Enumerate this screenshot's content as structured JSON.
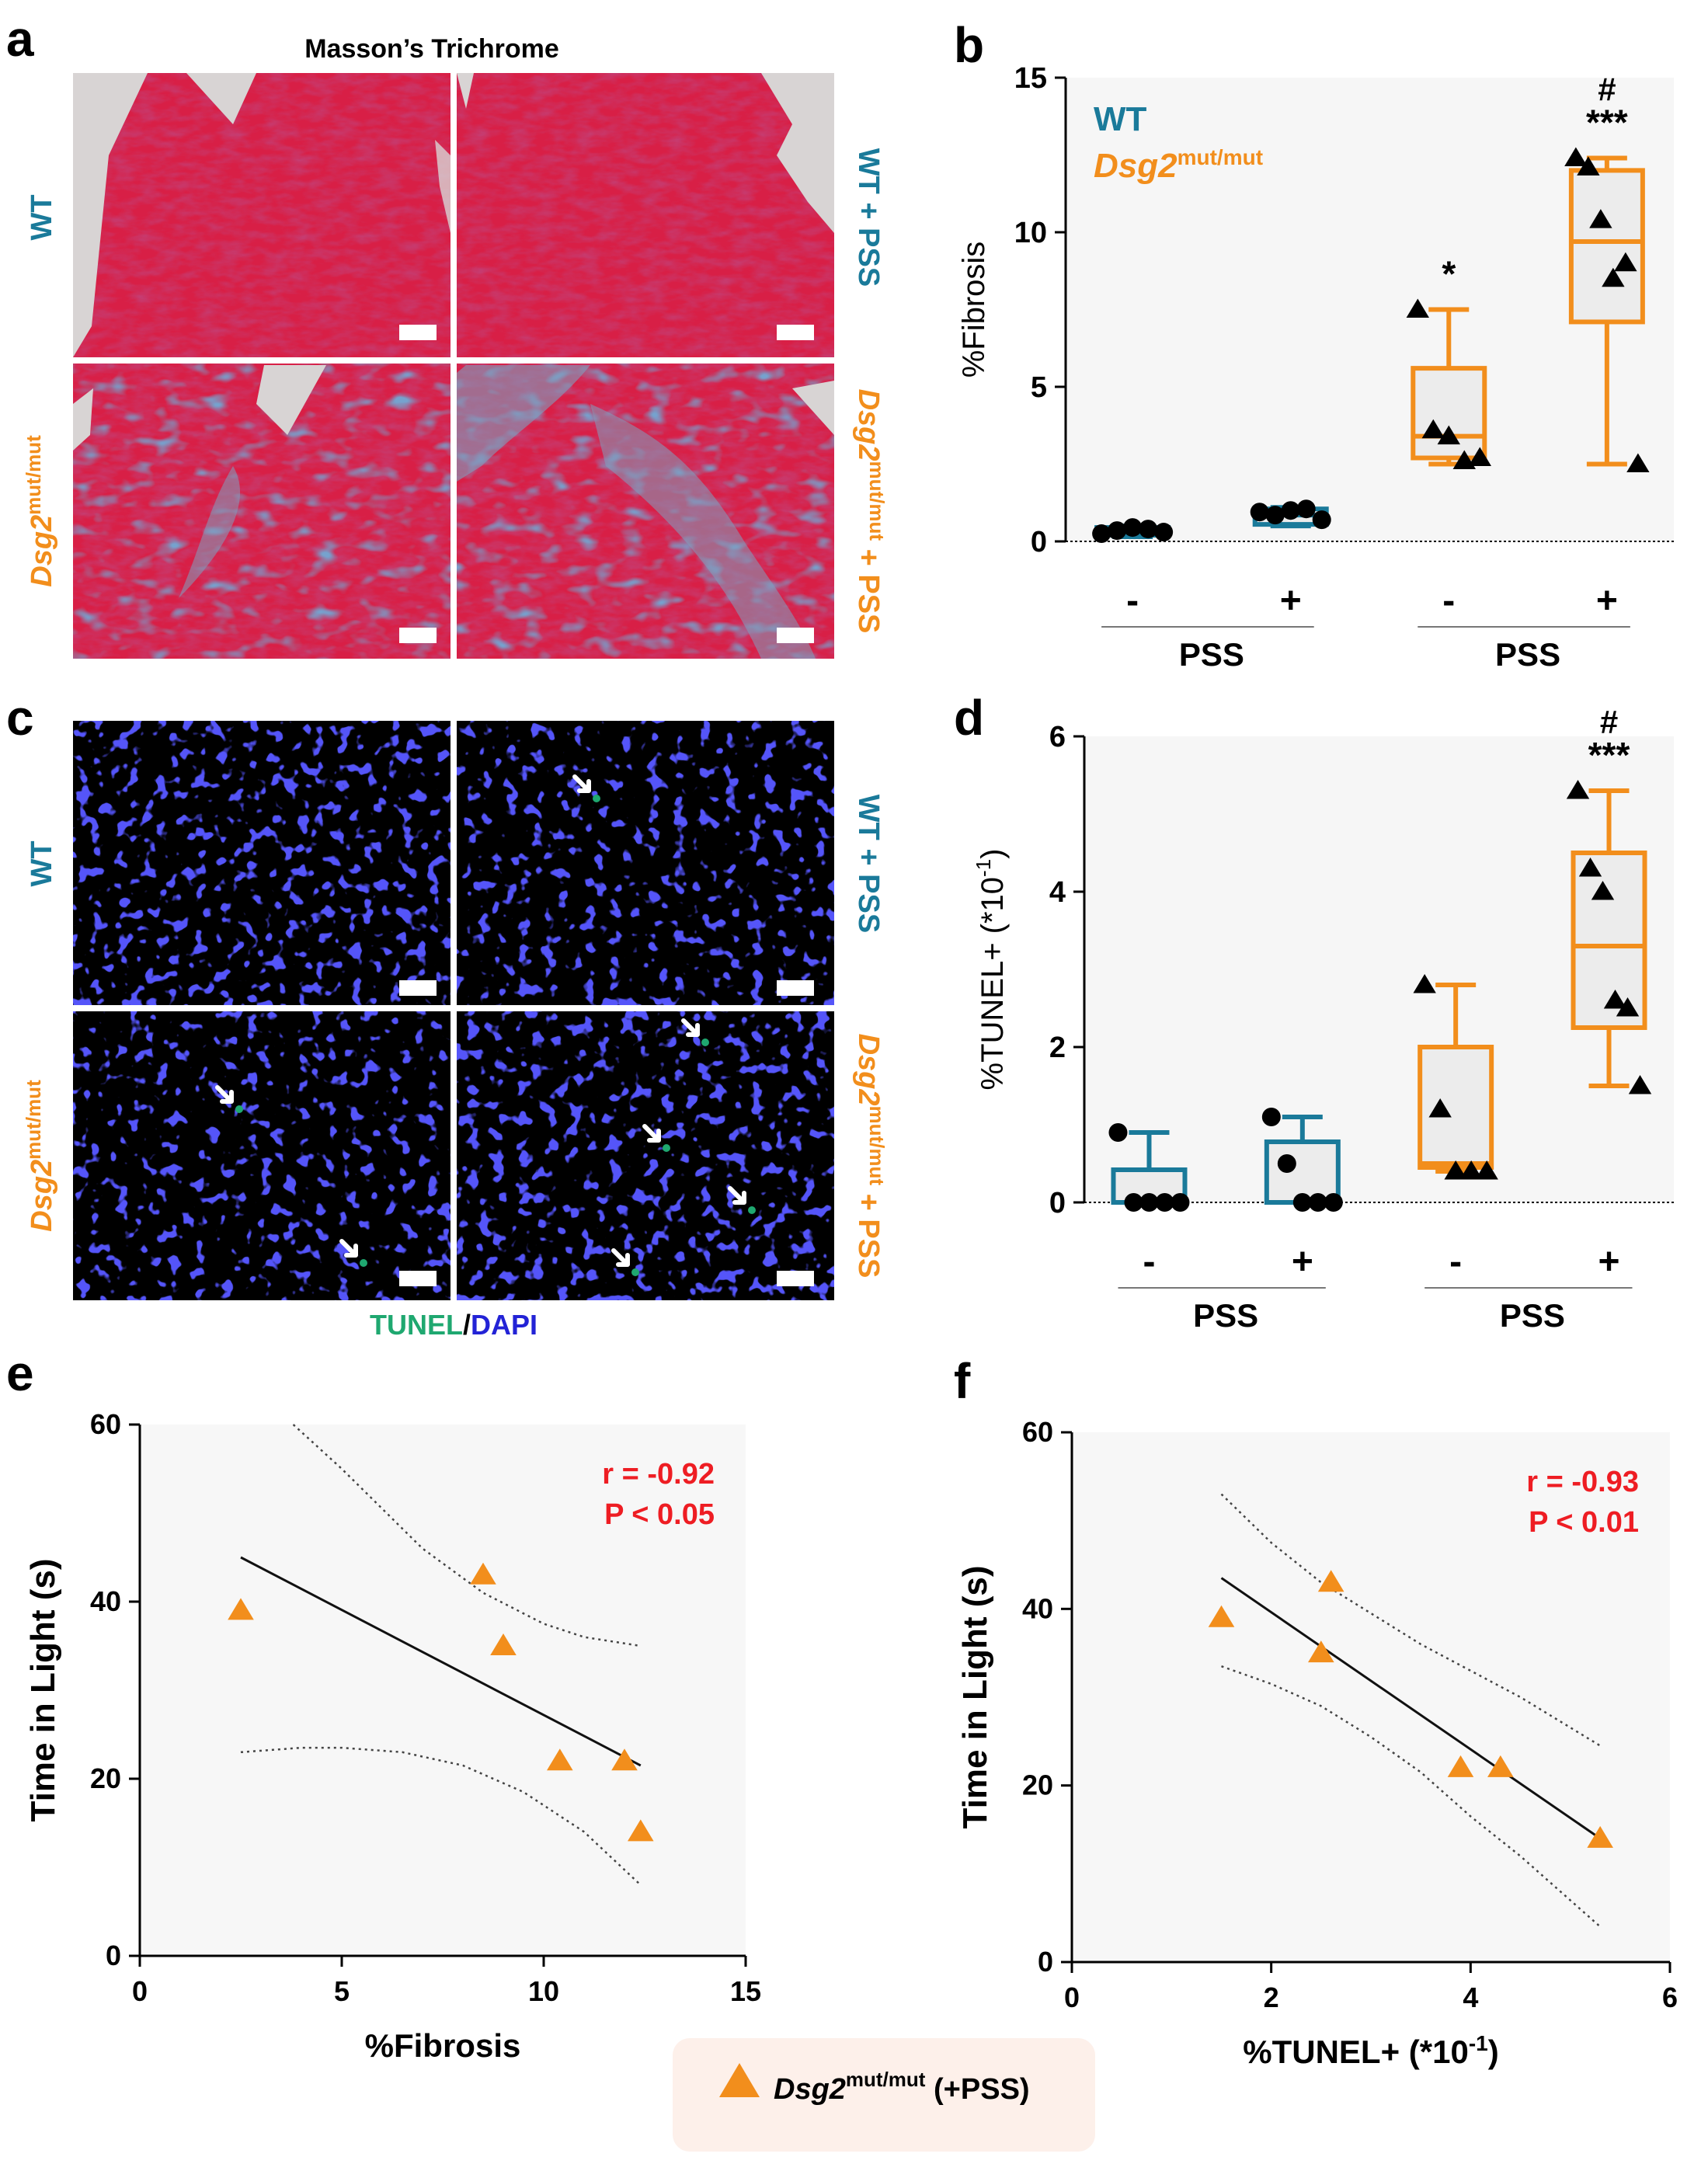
{
  "panel_letters": [
    "a",
    "b",
    "c",
    "d",
    "e",
    "f"
  ],
  "colors": {
    "wt": "#1a7a9a",
    "mut": "#f28e1c",
    "red": "#ee1d23",
    "tunel": "#1fa870",
    "dapi": "#2323d6"
  },
  "panel_a": {
    "title": "Masson’s Trichrome",
    "wt_label": "WT",
    "wt_pss_label": "WT + PSS",
    "mut_label_main": "Dsg2",
    "mut_label_sup": "mut/mut",
    "mut_pss_suffix": "+ PSS"
  },
  "panel_c": {
    "wt_label": "WT",
    "wt_pss_label": "WT + PSS",
    "mut_label_main": "Dsg2",
    "mut_label_sup": "mut/mut",
    "mut_pss_suffix": "+ PSS",
    "caption_tunel": "TUNEL",
    "caption_sep": "/",
    "caption_dapi": "DAPI"
  },
  "legend_box": {
    "main": "Dsg2",
    "sup": "mut/mut",
    "suffix": " (+PSS)"
  },
  "chart_data": [
    {
      "panel": "b",
      "type": "box",
      "ylabel": "%Fibrosis",
      "ylim": [
        0,
        15
      ],
      "yticks": [
        "0",
        "5",
        "10",
        "15"
      ],
      "legend": [
        {
          "label": "WT",
          "sup": "",
          "color": "#1a7a9a"
        },
        {
          "label": "Dsg2",
          "sup": "mut/mut",
          "color": "#f28e1c"
        }
      ],
      "categories": [
        "-",
        "+",
        "-",
        "+"
      ],
      "group_labels": [
        "PSS",
        "PSS"
      ],
      "groups": [
        {
          "genotype": "WT",
          "pss": "-",
          "min": 0.15,
          "q1": 0.2,
          "median": 0.35,
          "q3": 0.45,
          "max": 0.5,
          "points": [
            0.25,
            0.35,
            0.45,
            0.4,
            0.3
          ],
          "marker": "circle",
          "annotation": ""
        },
        {
          "genotype": "WT",
          "pss": "+",
          "min": 0.5,
          "q1": 0.55,
          "median": 0.85,
          "q3": 1.05,
          "max": 1.1,
          "points": [
            0.95,
            0.85,
            1.0,
            1.05,
            0.7
          ],
          "marker": "circle",
          "annotation": ""
        },
        {
          "genotype": "Dsg2",
          "pss": "-",
          "min": 2.5,
          "q1": 2.7,
          "median": 3.4,
          "q3": 5.6,
          "max": 7.5,
          "points": [
            7.5,
            3.6,
            3.4,
            2.6,
            2.7
          ],
          "marker": "triangle",
          "annotation": "*"
        },
        {
          "genotype": "Dsg2",
          "pss": "+",
          "min": 2.5,
          "q1": 7.1,
          "median": 9.7,
          "q3": 12.0,
          "max": 12.4,
          "points": [
            12.4,
            12.1,
            10.4,
            8.5,
            9.0,
            2.5
          ],
          "marker": "triangle",
          "annotation": "***",
          "annotation2": "#"
        }
      ]
    },
    {
      "panel": "d",
      "type": "box",
      "ylabel": "%TUNEL+ (*10",
      "ylabel_sup": "-1",
      "ylabel_end": ")",
      "ylim": [
        0,
        6
      ],
      "yticks": [
        "0",
        "2",
        "4",
        "6"
      ],
      "categories": [
        "-",
        "+",
        "-",
        "+"
      ],
      "group_labels": [
        "PSS",
        "PSS"
      ],
      "groups": [
        {
          "genotype": "WT",
          "pss": "-",
          "min": 0,
          "q1": 0,
          "median": 0,
          "q3": 0.42,
          "max": 0.9,
          "points": [
            0.9,
            0,
            0,
            0,
            0
          ],
          "marker": "circle",
          "annotation": ""
        },
        {
          "genotype": "WT",
          "pss": "+",
          "min": 0,
          "q1": 0,
          "median": 0,
          "q3": 0.78,
          "max": 1.1,
          "points": [
            1.1,
            0.5,
            0,
            0,
            0
          ],
          "marker": "circle",
          "annotation": ""
        },
        {
          "genotype": "Dsg2",
          "pss": "-",
          "min": 0.4,
          "q1": 0.45,
          "median": 0.5,
          "q3": 2.0,
          "max": 2.8,
          "points": [
            2.8,
            1.2,
            0.4,
            0.4,
            0.4
          ],
          "marker": "triangle",
          "annotation": ""
        },
        {
          "genotype": "Dsg2",
          "pss": "+",
          "min": 1.5,
          "q1": 2.25,
          "median": 3.3,
          "q3": 4.5,
          "max": 5.3,
          "points": [
            5.3,
            4.3,
            4.0,
            2.6,
            2.5,
            1.5
          ],
          "marker": "triangle",
          "annotation": "***",
          "annotation2": "#"
        }
      ]
    },
    {
      "panel": "e",
      "type": "scatter",
      "xlabel": "%Fibrosis",
      "ylabel": "Time in Light  (s)",
      "xlim": [
        0,
        15
      ],
      "ylim": [
        0,
        60
      ],
      "xticks": [
        "0",
        "5",
        "10",
        "15"
      ],
      "yticks": [
        "0",
        "20",
        "40",
        "60"
      ],
      "stat_r": "r = -0.92",
      "stat_p": "P < 0.05",
      "points": [
        {
          "x": 2.5,
          "y": 39
        },
        {
          "x": 8.5,
          "y": 43
        },
        {
          "x": 9.0,
          "y": 35
        },
        {
          "x": 10.4,
          "y": 22
        },
        {
          "x": 12.0,
          "y": 22
        },
        {
          "x": 12.4,
          "y": 14
        }
      ],
      "fit": {
        "x": [
          2.5,
          12.4
        ],
        "y": [
          45,
          21.5
        ]
      },
      "ci_upper": {
        "x": [
          3.8,
          5,
          7,
          8.5,
          10,
          11,
          12.4
        ],
        "y": [
          60,
          55,
          46,
          41,
          37.5,
          36,
          35
        ]
      },
      "ci_lower": {
        "x": [
          2.5,
          4,
          5,
          6.5,
          8,
          9.5,
          11,
          12.4
        ],
        "y": [
          23,
          23.5,
          23.5,
          23,
          21.5,
          18.5,
          14,
          8
        ]
      }
    },
    {
      "panel": "f",
      "type": "scatter",
      "xlabel": "%TUNEL+ (*10",
      "xlabel_sup": "-1",
      "xlabel_end": ")",
      "ylabel": "Time in Light  (s)",
      "xlim": [
        0,
        6
      ],
      "ylim": [
        0,
        60
      ],
      "xticks": [
        "0",
        "2",
        "4",
        "6"
      ],
      "yticks": [
        "0",
        "20",
        "40",
        "60"
      ],
      "stat_r": "r = -0.93",
      "stat_p": "P < 0.01",
      "points": [
        {
          "x": 1.5,
          "y": 39
        },
        {
          "x": 2.5,
          "y": 35
        },
        {
          "x": 2.6,
          "y": 43
        },
        {
          "x": 3.9,
          "y": 22
        },
        {
          "x": 4.3,
          "y": 22
        },
        {
          "x": 5.3,
          "y": 14
        }
      ],
      "fit": {
        "x": [
          1.5,
          5.3
        ],
        "y": [
          43.5,
          14
        ]
      },
      "ci_upper": {
        "x": [
          1.5,
          2,
          2.5,
          3,
          3.5,
          4,
          4.5,
          5.3
        ],
        "y": [
          53,
          47.5,
          43,
          39.5,
          36,
          33,
          30,
          24.5
        ]
      },
      "ci_lower": {
        "x": [
          1.5,
          2,
          2.5,
          3,
          3.5,
          4,
          4.5,
          5.3
        ],
        "y": [
          33.5,
          31.5,
          29,
          25.5,
          21.5,
          16.5,
          12,
          4
        ]
      }
    }
  ]
}
